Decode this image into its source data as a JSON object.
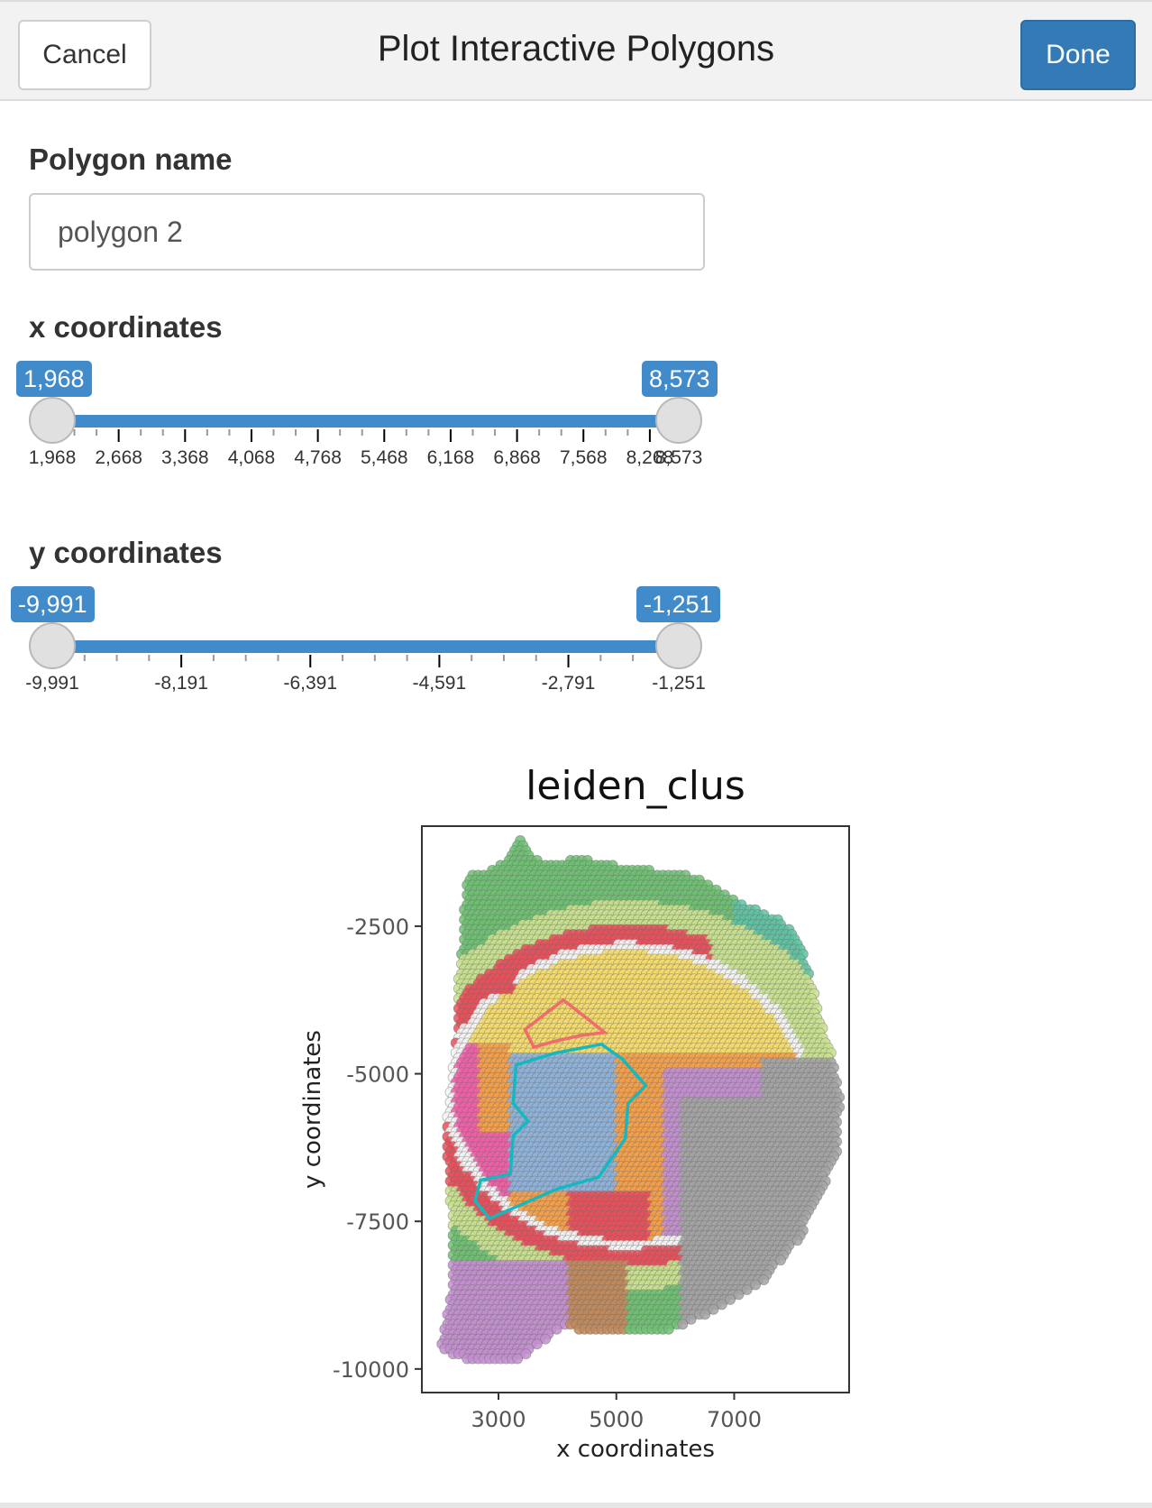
{
  "header": {
    "cancel_label": "Cancel",
    "title": "Plot Interactive Polygons",
    "done_label": "Done"
  },
  "form": {
    "polygon_name_label": "Polygon name",
    "polygon_name_value": "polygon 2",
    "x_label": "x coordinates",
    "y_label": "y coordinates"
  },
  "x_slider": {
    "min": 1968,
    "max": 8573,
    "low": 1968,
    "high": 8573,
    "low_label": "1,968",
    "high_label": "8,573",
    "ticks": [
      {
        "value": 1968,
        "label": "1,968"
      },
      {
        "value": 2668,
        "label": "2,668"
      },
      {
        "value": 3368,
        "label": "3,368"
      },
      {
        "value": 4068,
        "label": "4,068"
      },
      {
        "value": 4768,
        "label": "4,768"
      },
      {
        "value": 5468,
        "label": "5,468"
      },
      {
        "value": 6168,
        "label": "6,168"
      },
      {
        "value": 6868,
        "label": "6,868"
      },
      {
        "value": 7568,
        "label": "7,568"
      },
      {
        "value": 8268,
        "label": "8,268"
      },
      {
        "value": 8573,
        "label": "8,573"
      }
    ]
  },
  "y_slider": {
    "min": -9991,
    "max": -1251,
    "low": -9991,
    "high": -1251,
    "low_label": "-9,991",
    "high_label": "-1,251",
    "ticks": [
      {
        "value": -9991,
        "label": "-9,991"
      },
      {
        "value": -8191,
        "label": "-8,191"
      },
      {
        "value": -6391,
        "label": "-6,391"
      },
      {
        "value": -4591,
        "label": "-4,591"
      },
      {
        "value": -2791,
        "label": "-2,791"
      },
      {
        "value": -1251,
        "label": "-1,251"
      }
    ]
  },
  "chart_data": {
    "type": "scatter",
    "title": "leiden_clus",
    "xlabel": "x coordinates",
    "ylabel": "y coordinates",
    "xlim": [
      1700,
      8950
    ],
    "ylim": [
      -10400,
      -805
    ],
    "xticks": [
      3000,
      5000,
      7000
    ],
    "yticks": [
      -2500,
      -5000,
      -7500,
      -10000
    ],
    "grid": false,
    "legend": "none",
    "cluster_colors": {
      "green": "#6fbf73",
      "teal": "#5fc2a2",
      "red": "#e8505b",
      "yellow": "#f4dc6c",
      "lightgreen": "#c8e08e",
      "blue": "#8fb3d9",
      "pink": "#ef5fa7",
      "orange": "#f5a04a",
      "purple": "#c28fce",
      "gray": "#a3a3a3",
      "brown": "#c08a5c",
      "salmon": "#f4b28a",
      "white": "#f4f4f4"
    },
    "polygons": [
      {
        "color": "#ef6c6c",
        "points": [
          [
            3450,
            -4250
          ],
          [
            4100,
            -3750
          ],
          [
            4550,
            -4100
          ],
          [
            4800,
            -4300
          ],
          [
            4400,
            -4350
          ],
          [
            3950,
            -4450
          ],
          [
            3600,
            -4550
          ],
          [
            3450,
            -4250
          ]
        ]
      },
      {
        "color": "#16b8bf",
        "points": [
          [
            3300,
            -4850
          ],
          [
            3950,
            -4650
          ],
          [
            4750,
            -4500
          ],
          [
            5100,
            -4750
          ],
          [
            5500,
            -5200
          ],
          [
            5200,
            -5500
          ],
          [
            5150,
            -6100
          ],
          [
            4700,
            -6750
          ],
          [
            4000,
            -6950
          ],
          [
            2850,
            -7450
          ],
          [
            2600,
            -7150
          ],
          [
            2700,
            -6800
          ],
          [
            3200,
            -6700
          ],
          [
            3250,
            -6050
          ],
          [
            3500,
            -5800
          ],
          [
            3250,
            -5500
          ],
          [
            3300,
            -4850
          ]
        ]
      }
    ]
  }
}
